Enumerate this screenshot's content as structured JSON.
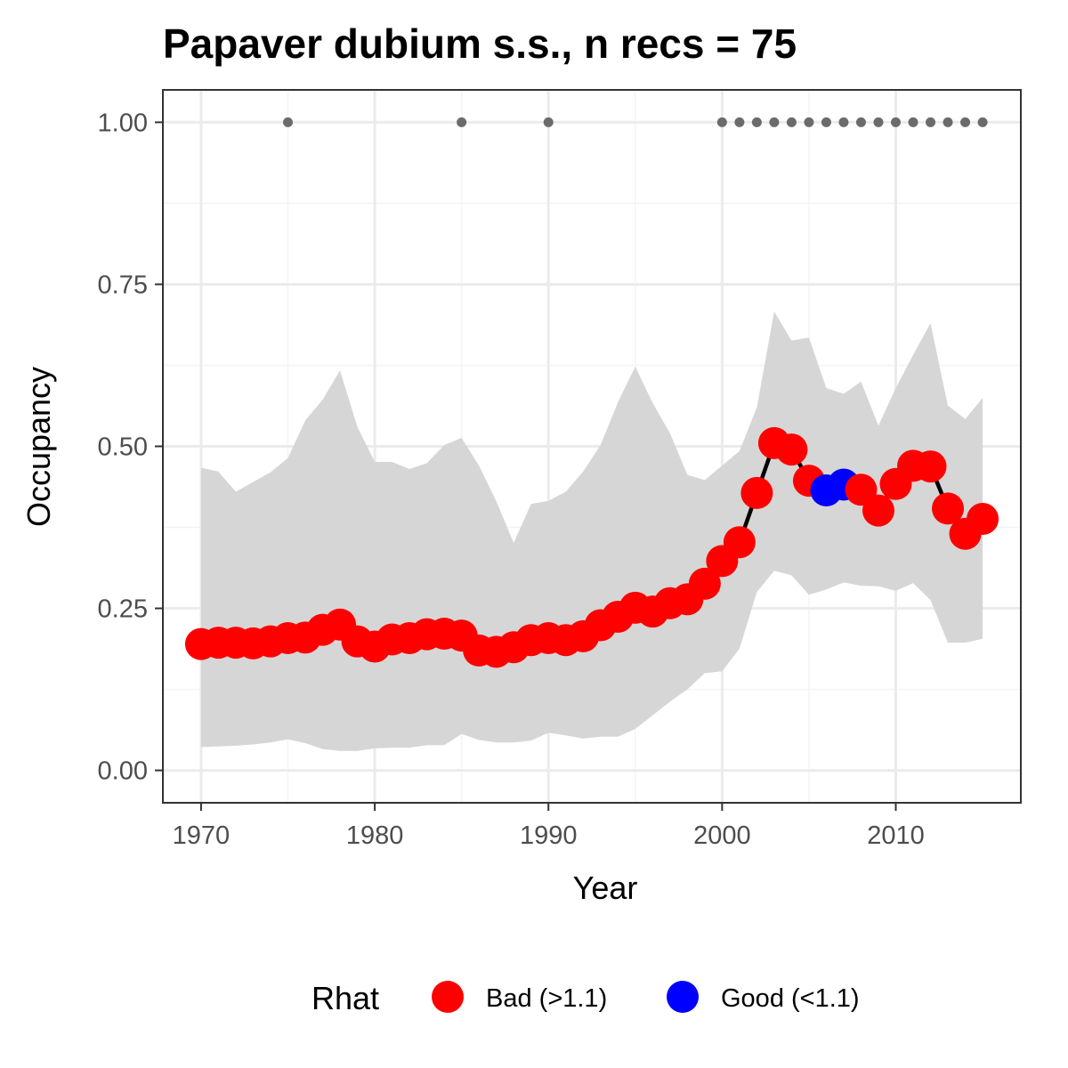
{
  "chart_data": {
    "type": "line",
    "title": "Papaver dubium s.s., n recs = 75",
    "xlabel": "Year",
    "ylabel": "Occupancy",
    "xlim": [
      1967.8,
      2017.2
    ],
    "ylim": [
      -0.05,
      1.05
    ],
    "x_ticks": [
      1970,
      1980,
      1990,
      2000,
      2010
    ],
    "x_tick_labels": [
      "1970",
      "1980",
      "1990",
      "2000",
      "2010"
    ],
    "y_ticks": [
      0,
      0.25,
      0.5,
      0.75,
      1
    ],
    "y_tick_labels": [
      "0.00",
      "0.25",
      "0.50",
      "0.75",
      "1.00"
    ],
    "grid": true,
    "x": [
      1970,
      1971,
      1972,
      1973,
      1974,
      1975,
      1976,
      1977,
      1978,
      1979,
      1980,
      1981,
      1982,
      1983,
      1984,
      1985,
      1986,
      1987,
      1988,
      1989,
      1990,
      1991,
      1992,
      1993,
      1994,
      1995,
      1996,
      1997,
      1998,
      1999,
      2000,
      2001,
      2002,
      2003,
      2004,
      2005,
      2006,
      2007,
      2008,
      2009,
      2010,
      2011,
      2012,
      2013,
      2014,
      2015
    ],
    "occupancy": [
      0.195,
      0.197,
      0.197,
      0.196,
      0.199,
      0.204,
      0.205,
      0.217,
      0.225,
      0.199,
      0.191,
      0.202,
      0.204,
      0.21,
      0.211,
      0.208,
      0.185,
      0.183,
      0.19,
      0.201,
      0.204,
      0.201,
      0.207,
      0.224,
      0.237,
      0.251,
      0.245,
      0.258,
      0.264,
      0.288,
      0.323,
      0.352,
      0.428,
      0.505,
      0.495,
      0.447,
      0.432,
      0.441,
      0.433,
      0.401,
      0.442,
      0.47,
      0.469,
      0.404,
      0.365,
      0.388
    ],
    "rhat": [
      "Bad",
      "Bad",
      "Bad",
      "Bad",
      "Bad",
      "Bad",
      "Bad",
      "Bad",
      "Bad",
      "Bad",
      "Bad",
      "Bad",
      "Bad",
      "Bad",
      "Bad",
      "Bad",
      "Bad",
      "Bad",
      "Bad",
      "Bad",
      "Bad",
      "Bad",
      "Bad",
      "Bad",
      "Bad",
      "Bad",
      "Bad",
      "Bad",
      "Bad",
      "Bad",
      "Bad",
      "Bad",
      "Bad",
      "Bad",
      "Bad",
      "Bad",
      "Good",
      "Good",
      "Bad",
      "Bad",
      "Bad",
      "Bad",
      "Bad",
      "Bad",
      "Bad",
      "Bad"
    ],
    "upper_ci": [
      0.467,
      0.461,
      0.43,
      0.445,
      0.46,
      0.482,
      0.54,
      0.572,
      0.617,
      0.53,
      0.476,
      0.476,
      0.465,
      0.474,
      0.502,
      0.513,
      0.47,
      0.415,
      0.351,
      0.411,
      0.416,
      0.43,
      0.461,
      0.502,
      0.568,
      0.623,
      0.567,
      0.52,
      0.456,
      0.448,
      0.47,
      0.493,
      0.56,
      0.708,
      0.663,
      0.668,
      0.59,
      0.581,
      0.6,
      0.532,
      0.59,
      0.641,
      0.69,
      0.563,
      0.542,
      0.575
    ],
    "lower_ci": [
      0.036,
      0.037,
      0.038,
      0.04,
      0.043,
      0.048,
      0.042,
      0.033,
      0.03,
      0.03,
      0.034,
      0.035,
      0.035,
      0.039,
      0.039,
      0.056,
      0.047,
      0.043,
      0.043,
      0.046,
      0.058,
      0.054,
      0.049,
      0.052,
      0.052,
      0.064,
      0.085,
      0.106,
      0.125,
      0.15,
      0.153,
      0.188,
      0.275,
      0.308,
      0.301,
      0.271,
      0.279,
      0.29,
      0.285,
      0.284,
      0.277,
      0.289,
      0.263,
      0.197,
      0.197,
      0.203
    ],
    "record_years": [
      1975,
      1985,
      1990,
      2000,
      2001,
      2002,
      2003,
      2004,
      2005,
      2006,
      2007,
      2008,
      2009,
      2010,
      2011,
      2012,
      2013,
      2014,
      2015
    ],
    "record_value": 1.0,
    "legend": {
      "title": "Rhat",
      "position": "bottom",
      "entries": [
        {
          "key": "Bad",
          "label": "Bad (>1.1)",
          "color": "#ff0000"
        },
        {
          "key": "Good",
          "label": "Good (<1.1)",
          "color": "#0000ff"
        }
      ]
    },
    "colors": {
      "ribbon": "#d6d6d6",
      "line": "#000000",
      "record_point": "#6b6b6b",
      "panel_border": "#333333",
      "grid_major": "#ebebeb",
      "grid_minor": "#f4f4f4"
    }
  }
}
